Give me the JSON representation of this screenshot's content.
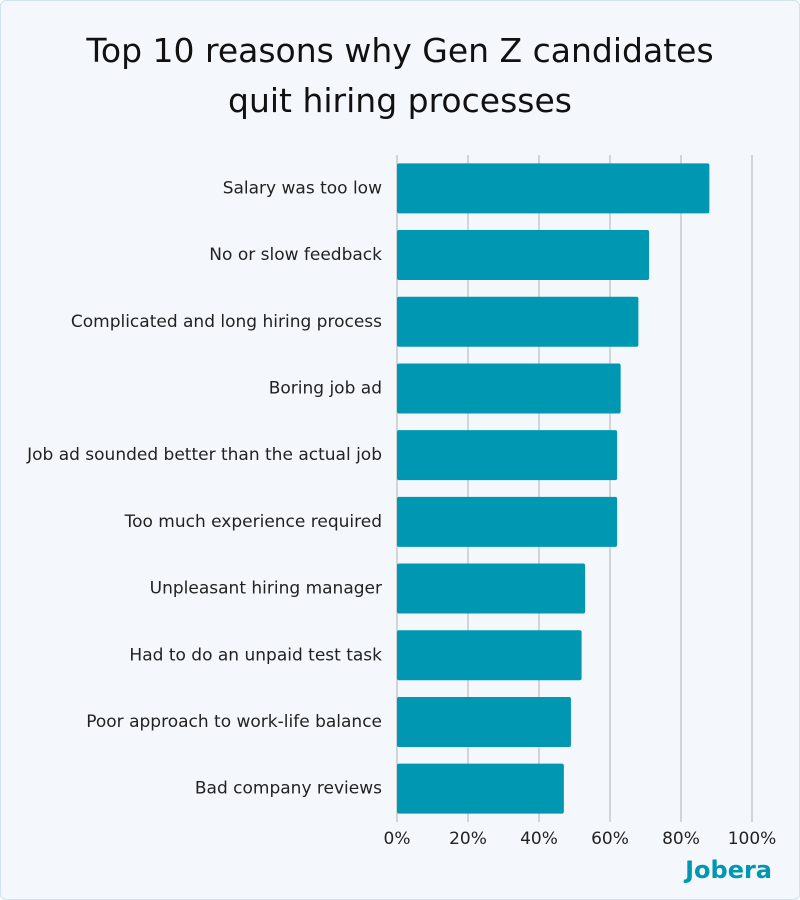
{
  "chart_data": {
    "type": "barh",
    "title": "Top 10 reasons why Gen Z candidates quit hiring processes",
    "categories": [
      "Salary was too low",
      "No or slow feedback",
      "Complicated and long hiring process",
      "Boring job ad",
      "Job ad sounded better than the actual job",
      "Too much experience required",
      "Unpleasant hiring manager",
      "Had to do an unpaid test task",
      "Poor approach to work-life balance",
      "Bad company reviews"
    ],
    "values": [
      88,
      71,
      68,
      63,
      62,
      62,
      53,
      52,
      49,
      47
    ],
    "color": "#0097b2",
    "xlim": [
      0,
      100
    ],
    "xticks": [
      {
        "value": 0,
        "label": "0%"
      },
      {
        "value": 20,
        "label": "20%"
      },
      {
        "value": 40,
        "label": "40%"
      },
      {
        "value": 60,
        "label": "60%"
      },
      {
        "value": 80,
        "label": "80%"
      },
      {
        "value": 100,
        "label": "100%"
      }
    ],
    "grid": true
  },
  "brand": "Jobera"
}
